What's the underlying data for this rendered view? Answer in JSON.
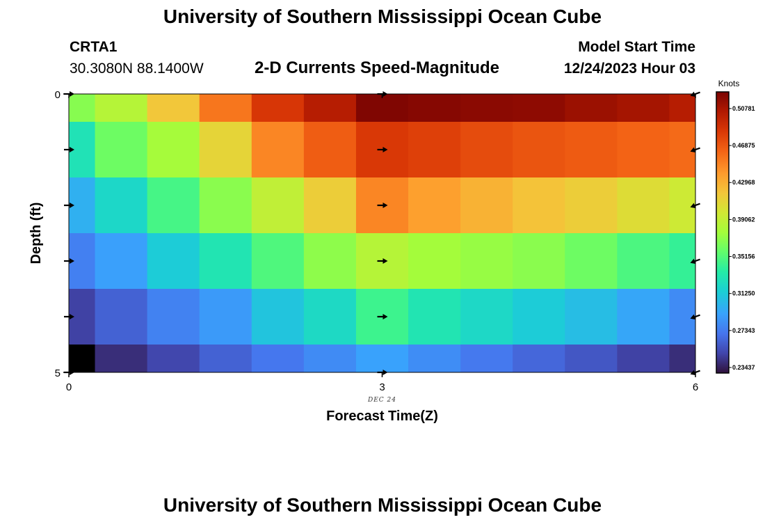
{
  "chart_data": {
    "type": "heatmap",
    "title": "University of Southern Mississippi Ocean Cube",
    "title_repeat": "University of Southern Mississippi Ocean Cube",
    "station": "CRTA1",
    "coordinates": "30.3080N  88.1400W",
    "subtitle": "2-D Currents Speed-Magnitude",
    "model_start_label": "Model Start Time",
    "model_start_value": "12/24/2023 Hour 03",
    "xlabel": "Forecast Time(Z)",
    "ylabel": "Depth (ft)",
    "date_label": "DEC 24",
    "xlim": [
      0,
      6
    ],
    "ylim": [
      0,
      5
    ],
    "x_ticks": [
      "0",
      "3",
      "6"
    ],
    "y_ticks": [
      "0",
      "5"
    ],
    "colorbar": {
      "unit": "Knots",
      "ticks": [
        "0.50781",
        "0.46875",
        "0.42968",
        "0.39062",
        "0.35156",
        "0.31250",
        "0.27343",
        "0.23437"
      ],
      "tick_values": [
        0.50781,
        0.46875,
        0.42968,
        0.39062,
        0.35156,
        0.3125,
        0.27343,
        0.23437
      ],
      "range": [
        0.2285,
        0.5254
      ]
    },
    "column_times": [
      0,
      0.5,
      1,
      1.5,
      2,
      2.5,
      3,
      3.5,
      4,
      4.5,
      5,
      5.5,
      6
    ],
    "row_depths": [
      0,
      1,
      2,
      3,
      4,
      5
    ],
    "speed_knots": [
      [
        0.368,
        0.385,
        0.418,
        0.455,
        0.485,
        0.502,
        0.523,
        0.521,
        0.519,
        0.518,
        0.513,
        0.509,
        0.502
      ],
      [
        0.328,
        0.36,
        0.378,
        0.41,
        0.448,
        0.466,
        0.484,
        0.48,
        0.474,
        0.47,
        0.467,
        0.463,
        0.46
      ],
      [
        0.298,
        0.32,
        0.347,
        0.369,
        0.39,
        0.414,
        0.448,
        0.437,
        0.428,
        0.42,
        0.414,
        0.405,
        0.396
      ],
      [
        0.275,
        0.29,
        0.313,
        0.33,
        0.35,
        0.37,
        0.385,
        0.377,
        0.373,
        0.369,
        0.36,
        0.349,
        0.341
      ],
      [
        0.248,
        0.262,
        0.276,
        0.287,
        0.309,
        0.322,
        0.344,
        0.33,
        0.321,
        0.313,
        0.305,
        0.293,
        0.28
      ],
      [
        0.2285,
        0.24,
        0.25,
        0.262,
        0.271,
        0.28,
        0.291,
        0.281,
        0.272,
        0.264,
        0.257,
        0.248,
        0.24
      ]
    ],
    "vector_rows": [
      0,
      1,
      2,
      3,
      4,
      5
    ],
    "vector_columns": [
      0,
      3,
      6
    ],
    "vector_direction_deg": [
      [
        0,
        0,
        -160
      ],
      [
        0,
        0,
        -160
      ],
      [
        0,
        0,
        -160
      ],
      [
        0,
        0,
        -160
      ],
      [
        0,
        0,
        -160
      ],
      [
        0,
        0,
        -160
      ]
    ]
  }
}
